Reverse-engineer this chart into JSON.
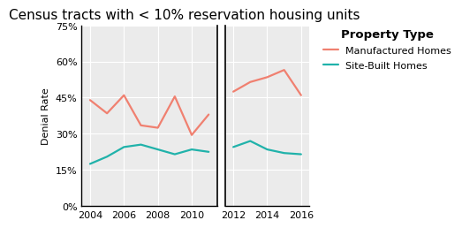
{
  "title": "Census tracts with < 10% reservation housing units",
  "ylabel": "Denial Rate",
  "background_color": "#ebebeb",
  "panel1": {
    "years": [
      2004,
      2005,
      2006,
      2007,
      2008,
      2009,
      2010,
      2011
    ],
    "manufactured": [
      0.44,
      0.385,
      0.46,
      0.335,
      0.325,
      0.455,
      0.295,
      0.38
    ],
    "site_built": [
      0.175,
      0.205,
      0.245,
      0.255,
      0.235,
      0.215,
      0.235,
      0.225
    ]
  },
  "panel2": {
    "years": [
      2012,
      2013,
      2014,
      2015,
      2016
    ],
    "manufactured": [
      0.475,
      0.515,
      0.535,
      0.565,
      0.46
    ],
    "site_built": [
      0.245,
      0.27,
      0.235,
      0.22,
      0.215
    ]
  },
  "yticks": [
    0.0,
    0.15,
    0.3,
    0.45,
    0.6,
    0.75
  ],
  "ytick_labels": [
    "0%",
    "15%",
    "30%",
    "45%",
    "60%",
    "75%"
  ],
  "color_manufactured": "#f08070",
  "color_site_built": "#20b2aa",
  "line_width": 1.6,
  "legend_title": "Property Type",
  "legend_manufactured": "Manufactured Homes",
  "legend_site_built": "Site-Built Homes",
  "title_fontsize": 11,
  "axis_fontsize": 8,
  "tick_fontsize": 8
}
